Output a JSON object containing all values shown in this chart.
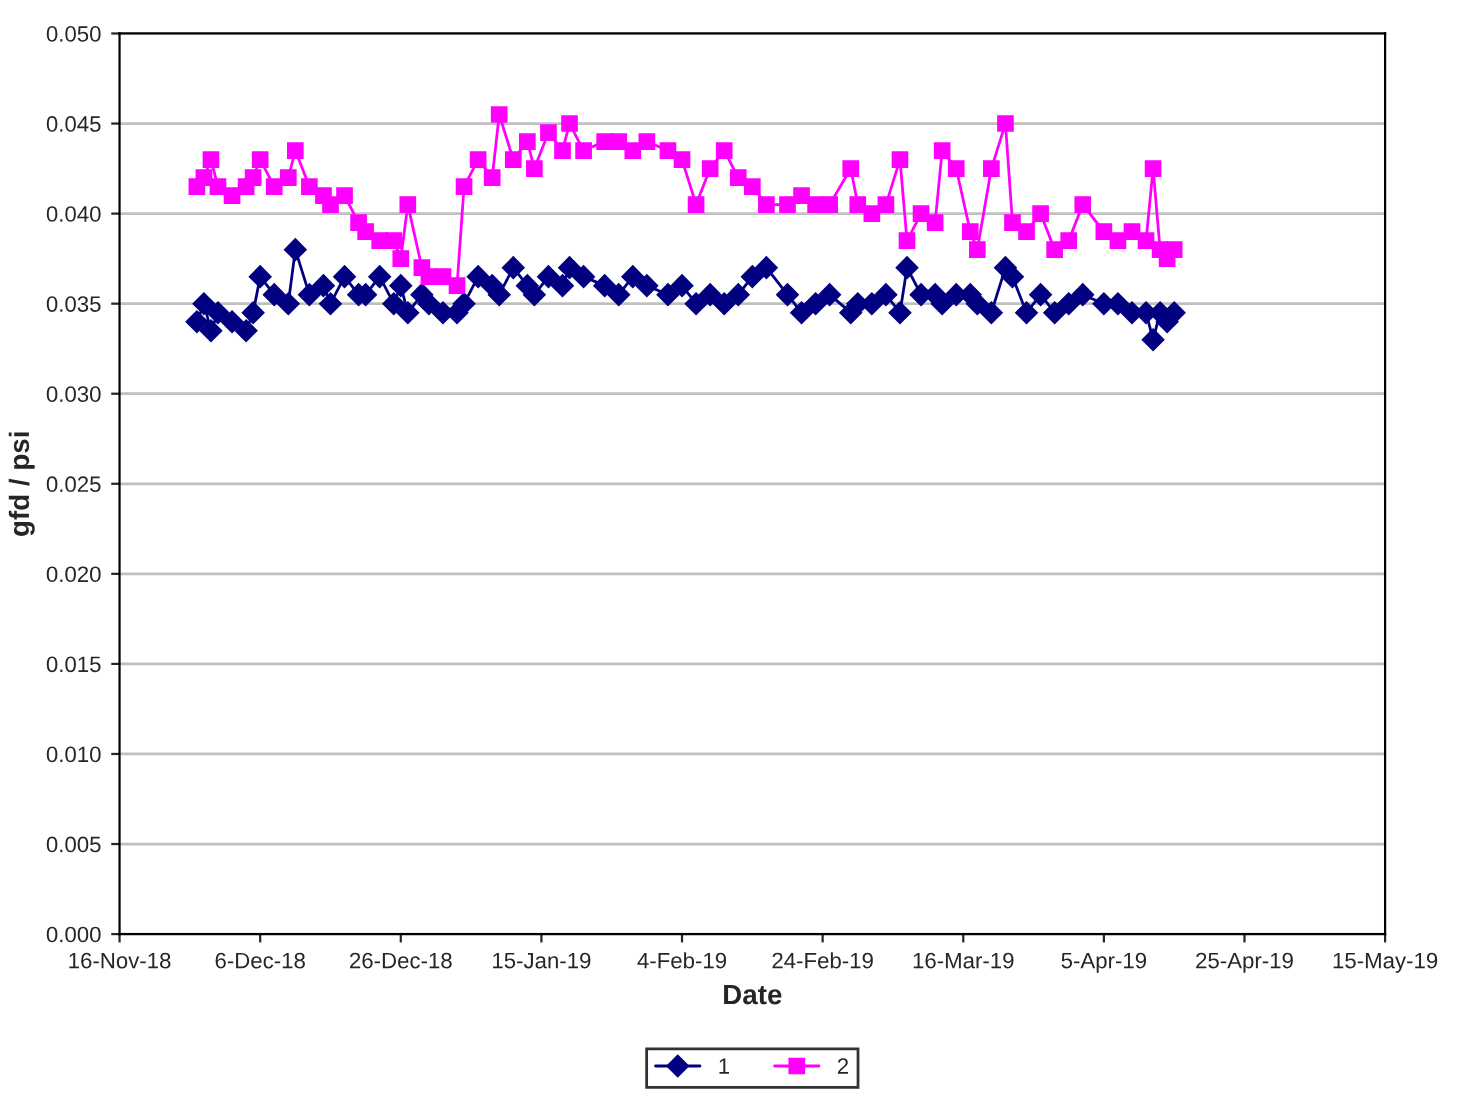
{
  "chart_data": {
    "type": "line",
    "xlabel": "Date",
    "ylabel": "gfd / psi",
    "x": [
      "2018-11-27",
      "2018-11-28",
      "2018-11-29",
      "2018-11-30",
      "2018-12-02",
      "2018-12-04",
      "2018-12-05",
      "2018-12-06",
      "2018-12-08",
      "2018-12-10",
      "2018-12-11",
      "2018-12-13",
      "2018-12-15",
      "2018-12-16",
      "2018-12-18",
      "2018-12-20",
      "2018-12-21",
      "2018-12-23",
      "2018-12-25",
      "2018-12-26",
      "2018-12-27",
      "2018-12-29",
      "2018-12-30",
      "2019-01-01",
      "2019-01-03",
      "2019-01-04",
      "2019-01-06",
      "2019-01-08",
      "2019-01-09",
      "2019-01-11",
      "2019-01-13",
      "2019-01-14",
      "2019-01-16",
      "2019-01-18",
      "2019-01-19",
      "2019-01-21",
      "2019-01-24",
      "2019-01-26",
      "2019-01-28",
      "2019-01-30",
      "2019-02-02",
      "2019-02-04",
      "2019-02-06",
      "2019-02-08",
      "2019-02-10",
      "2019-02-12",
      "2019-02-14",
      "2019-02-16",
      "2019-02-19",
      "2019-02-21",
      "2019-02-23",
      "2019-02-25",
      "2019-02-28",
      "2019-03-01",
      "2019-03-03",
      "2019-03-05",
      "2019-03-07",
      "2019-03-08",
      "2019-03-10",
      "2019-03-12",
      "2019-03-13",
      "2019-03-15",
      "2019-03-17",
      "2019-03-18",
      "2019-03-20",
      "2019-03-22",
      "2019-03-23",
      "2019-03-25",
      "2019-03-27",
      "2019-03-29",
      "2019-03-31",
      "2019-04-02",
      "2019-04-05",
      "2019-04-07",
      "2019-04-09",
      "2019-04-11",
      "2019-04-12",
      "2019-04-13",
      "2019-04-14",
      "2019-04-15"
    ],
    "series": [
      {
        "name": "1",
        "color": "#000080",
        "marker": "diamond",
        "values": [
          0.034,
          0.035,
          0.0335,
          0.0345,
          0.034,
          0.0335,
          0.0345,
          0.0365,
          0.0355,
          0.035,
          0.038,
          0.0355,
          0.036,
          0.035,
          0.0365,
          0.0355,
          0.0355,
          0.0365,
          0.035,
          0.036,
          0.0345,
          0.0355,
          0.035,
          0.0345,
          0.0345,
          0.035,
          0.0365,
          0.036,
          0.0355,
          0.037,
          0.036,
          0.0355,
          0.0365,
          0.036,
          0.037,
          0.0365,
          0.036,
          0.0355,
          0.0365,
          0.036,
          0.0355,
          0.036,
          0.035,
          0.0355,
          0.035,
          0.0355,
          0.0365,
          0.037,
          0.0355,
          0.0345,
          0.035,
          0.0355,
          0.0345,
          0.035,
          0.035,
          0.0355,
          0.0345,
          0.037,
          0.0355,
          0.0355,
          0.035,
          0.0355,
          0.0355,
          0.035,
          0.0345,
          0.037,
          0.0365,
          0.0345,
          0.0355,
          0.0345,
          0.035,
          0.0355,
          0.035,
          0.035,
          0.0345,
          0.0345,
          0.033,
          0.0345,
          0.034,
          0.0345
        ]
      },
      {
        "name": "2",
        "color": "#ff00ff",
        "marker": "square",
        "values": [
          0.0415,
          0.042,
          0.043,
          0.0415,
          0.041,
          0.0415,
          0.042,
          0.043,
          0.0415,
          0.042,
          0.0435,
          0.0415,
          0.041,
          0.0405,
          0.041,
          0.0395,
          0.039,
          0.0385,
          0.0385,
          0.0375,
          0.0405,
          0.037,
          0.0365,
          0.0365,
          0.036,
          0.0415,
          0.043,
          0.042,
          0.0455,
          0.043,
          0.044,
          0.0425,
          0.0445,
          0.0435,
          0.045,
          0.0435,
          0.044,
          0.044,
          0.0435,
          0.044,
          0.0435,
          0.043,
          0.0405,
          0.0425,
          0.0435,
          0.042,
          0.0415,
          0.0405,
          0.0405,
          0.041,
          0.0405,
          0.0405,
          0.0425,
          0.0405,
          0.04,
          0.0405,
          0.043,
          0.0385,
          0.04,
          0.0395,
          0.0435,
          0.0425,
          0.039,
          0.038,
          0.0425,
          0.045,
          0.0395,
          0.039,
          0.04,
          0.038,
          0.0385,
          0.0405,
          0.039,
          0.0385,
          0.039,
          0.0385,
          0.0425,
          0.038,
          0.0375,
          0.038
        ]
      }
    ],
    "xlim": [
      "2018-11-16",
      "2019-05-15"
    ],
    "xticks": [
      {
        "value": "2018-11-16",
        "label": "16-Nov-18"
      },
      {
        "value": "2018-12-06",
        "label": "6-Dec-18"
      },
      {
        "value": "2018-12-26",
        "label": "26-Dec-18"
      },
      {
        "value": "2019-01-15",
        "label": "15-Jan-19"
      },
      {
        "value": "2019-02-04",
        "label": "4-Feb-19"
      },
      {
        "value": "2019-02-24",
        "label": "24-Feb-19"
      },
      {
        "value": "2019-03-16",
        "label": "16-Mar-19"
      },
      {
        "value": "2019-04-05",
        "label": "5-Apr-19"
      },
      {
        "value": "2019-04-25",
        "label": "25-Apr-19"
      },
      {
        "value": "2019-05-15",
        "label": "15-May-19"
      }
    ],
    "ylim": [
      0,
      0.05
    ],
    "yticks": [
      {
        "value": 0,
        "label": "0.000"
      },
      {
        "value": 0.005,
        "label": "0.005"
      },
      {
        "value": 0.01,
        "label": "0.010"
      },
      {
        "value": 0.015,
        "label": "0.015"
      },
      {
        "value": 0.02,
        "label": "0.020"
      },
      {
        "value": 0.025,
        "label": "0.025"
      },
      {
        "value": 0.03,
        "label": "0.030"
      },
      {
        "value": 0.035,
        "label": "0.035"
      },
      {
        "value": 0.04,
        "label": "0.040"
      },
      {
        "value": 0.045,
        "label": "0.045"
      },
      {
        "value": 0.05,
        "label": "0.050"
      }
    ],
    "grid": "y",
    "legend": "bottom",
    "line_style": "solid"
  }
}
